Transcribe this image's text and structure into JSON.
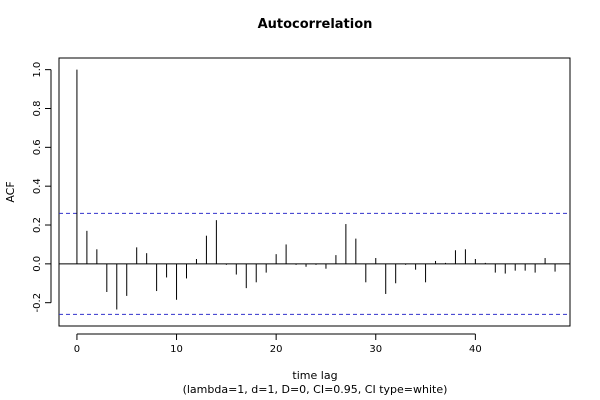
{
  "chart_data": {
    "type": "bar",
    "title": "Autocorrelation",
    "xlabel": "time lag",
    "subtitle": "(lambda=1, d=1, D=0, CI=0.95, CI type=white)",
    "ylabel": "ACF",
    "xlim": [
      -1.8,
      49.5
    ],
    "ylim": [
      -0.32,
      1.06
    ],
    "x_ticks": [
      "0",
      "10",
      "20",
      "30",
      "40"
    ],
    "y_ticks": [
      "-0.2",
      "0.0",
      "0.2",
      "0.4",
      "0.6",
      "0.8",
      "1.0"
    ],
    "grid": false,
    "zero_line": true,
    "confidence_band": {
      "upper": 0.26,
      "lower": -0.26,
      "color": "#3333cc",
      "style": "dashed"
    },
    "lags": [
      0,
      1,
      2,
      3,
      4,
      5,
      6,
      7,
      8,
      9,
      10,
      11,
      12,
      13,
      14,
      15,
      16,
      17,
      18,
      19,
      20,
      21,
      22,
      23,
      24,
      25,
      26,
      27,
      28,
      29,
      30,
      31,
      32,
      33,
      34,
      35,
      36,
      37,
      38,
      39,
      40,
      41,
      42,
      43,
      44,
      45,
      46,
      47,
      48
    ],
    "values": [
      1.0,
      0.17,
      0.075,
      -0.145,
      -0.235,
      -0.165,
      0.085,
      0.055,
      -0.14,
      -0.07,
      -0.185,
      -0.075,
      0.025,
      0.145,
      0.225,
      -0.005,
      -0.055,
      -0.125,
      -0.095,
      -0.045,
      0.05,
      0.1,
      -0.005,
      -0.015,
      -0.005,
      -0.025,
      0.045,
      0.205,
      0.13,
      -0.095,
      0.03,
      -0.155,
      -0.1,
      -0.005,
      -0.03,
      -0.095,
      0.015,
      0.005,
      0.07,
      0.075,
      0.025,
      0.005,
      -0.045,
      -0.05,
      -0.035,
      -0.035,
      -0.045,
      0.03,
      -0.04
    ],
    "colors": {
      "bars": "#000000",
      "axis": "#000000",
      "ci": "#3333cc"
    }
  }
}
